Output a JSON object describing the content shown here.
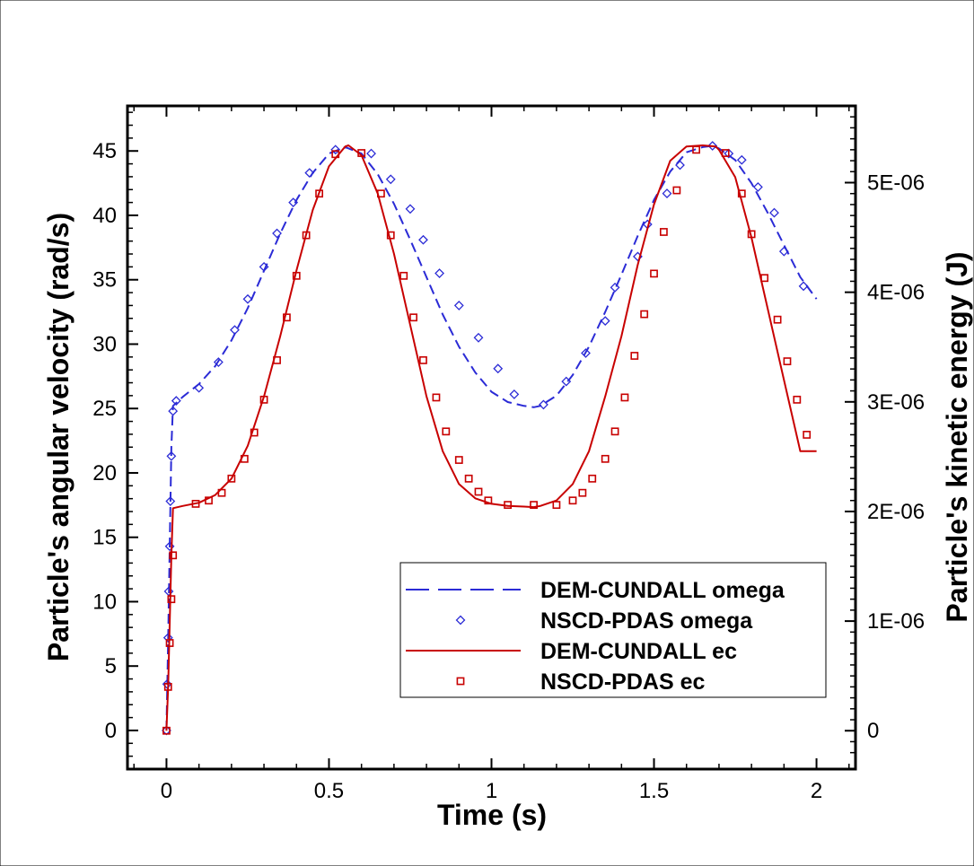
{
  "chart_data": {
    "type": "line",
    "xlabel": "Time (s)",
    "ylabel": "Particle's angular velocity (rad/s)",
    "y2label": "Particle's kinetic energy (J)",
    "xlim": [
      -0.12,
      2.12
    ],
    "ylim": [
      -3,
      48.5
    ],
    "y2lim": [
      -3.5e-07,
      5.7e-06
    ],
    "x_ticks": [
      0,
      0.5,
      1,
      1.5,
      2
    ],
    "x_tick_labels": [
      "0",
      "0.5",
      "1",
      "1.5",
      "2"
    ],
    "y_ticks": [
      0,
      5,
      10,
      15,
      20,
      25,
      30,
      35,
      40,
      45
    ],
    "y_tick_labels": [
      "0",
      "5",
      "10",
      "15",
      "20",
      "25",
      "30",
      "35",
      "40",
      "45"
    ],
    "y2_ticks": [
      0,
      1e-06,
      2e-06,
      3e-06,
      4e-06,
      5e-06
    ],
    "y2_tick_labels": [
      "0",
      "1E-06",
      "2E-06",
      "3E-06",
      "4E-06",
      "5E-06"
    ],
    "grid": false,
    "legend_position": "lower-right",
    "series": [
      {
        "name": "DEM-CUNDALL omega",
        "axis": "left",
        "style": "dashed-line",
        "color": "#2b2bd6",
        "x": [
          0,
          0.005,
          0.01,
          0.015,
          0.02,
          0.05,
          0.1,
          0.15,
          0.2,
          0.25,
          0.3,
          0.35,
          0.4,
          0.45,
          0.5,
          0.55,
          0.6,
          0.65,
          0.7,
          0.75,
          0.8,
          0.85,
          0.9,
          0.95,
          1.0,
          1.05,
          1.1,
          1.13,
          1.15,
          1.2,
          1.25,
          1.3,
          1.35,
          1.4,
          1.45,
          1.5,
          1.55,
          1.6,
          1.65,
          1.68,
          1.7,
          1.75,
          1.8,
          1.85,
          1.9,
          1.95,
          2.0
        ],
        "y": [
          0,
          7,
          14.5,
          22,
          25.2,
          25.9,
          26.9,
          28.3,
          30.3,
          32.8,
          35.7,
          38.6,
          41.2,
          43.3,
          44.8,
          45.3,
          44.8,
          43.2,
          40.9,
          38.1,
          35.2,
          32.3,
          29.8,
          27.8,
          26.3,
          25.5,
          25.2,
          25.1,
          25.2,
          26.0,
          27.6,
          29.8,
          32.5,
          35.4,
          38.4,
          41.2,
          43.4,
          44.9,
          45.3,
          45.4,
          45.2,
          44.3,
          42.5,
          40.2,
          37.7,
          35.2,
          33.5
        ]
      },
      {
        "name": "NSCD-PDAS omega",
        "axis": "left",
        "style": "diamond-markers",
        "color": "#2b2bd6",
        "x": [
          0,
          0.002,
          0.005,
          0.007,
          0.01,
          0.012,
          0.015,
          0.02,
          0.03,
          0.1,
          0.16,
          0.21,
          0.25,
          0.3,
          0.34,
          0.39,
          0.44,
          0.52,
          0.63,
          0.69,
          0.75,
          0.79,
          0.84,
          0.9,
          0.96,
          1.02,
          1.07,
          1.16,
          1.23,
          1.29,
          1.35,
          1.38,
          1.45,
          1.48,
          1.54,
          1.58,
          1.68,
          1.73,
          1.77,
          1.82,
          1.87,
          1.9,
          1.96
        ],
        "y": [
          0,
          3.6,
          7.2,
          10.8,
          14.3,
          17.8,
          21.3,
          24.8,
          25.6,
          26.6,
          28.6,
          31.1,
          33.5,
          36.0,
          38.6,
          41.0,
          43.3,
          45.1,
          44.8,
          42.8,
          40.5,
          38.1,
          35.5,
          33.0,
          30.5,
          28.1,
          26.1,
          25.3,
          27.1,
          29.3,
          31.8,
          34.4,
          36.8,
          39.3,
          41.7,
          43.9,
          45.4,
          44.8,
          44.3,
          42.2,
          40.2,
          37.2,
          34.5
        ]
      },
      {
        "name": "DEM-CUNDALL ec",
        "axis": "right",
        "style": "solid-line",
        "color": "#c80000",
        "x": [
          0,
          0.005,
          0.01,
          0.015,
          0.02,
          0.05,
          0.1,
          0.15,
          0.2,
          0.25,
          0.3,
          0.35,
          0.4,
          0.45,
          0.5,
          0.55,
          0.56,
          0.6,
          0.65,
          0.7,
          0.75,
          0.8,
          0.85,
          0.9,
          0.95,
          1.0,
          1.05,
          1.1,
          1.13,
          1.15,
          1.2,
          1.25,
          1.3,
          1.35,
          1.4,
          1.45,
          1.5,
          1.55,
          1.6,
          1.65,
          1.69,
          1.7,
          1.75,
          1.8,
          1.85,
          1.9,
          1.95,
          2.0
        ],
        "y": [
          0,
          4e-07,
          1e-06,
          1.6e-06,
          2.03e-06,
          2.05e-06,
          2.08e-06,
          2.15e-06,
          2.3e-06,
          2.6e-06,
          3.05e-06,
          3.6e-06,
          4.2e-06,
          4.75e-06,
          5.15e-06,
          5.33e-06,
          5.34e-06,
          5.25e-06,
          4.9e-06,
          4.35e-06,
          3.7e-06,
          3.05e-06,
          2.55e-06,
          2.25e-06,
          2.12e-06,
          2.07e-06,
          2.05e-06,
          2.045e-06,
          2.04e-06,
          2.05e-06,
          2.1e-06,
          2.25e-06,
          2.55e-06,
          3.05e-06,
          3.6e-06,
          4.25e-06,
          4.8e-06,
          5.2e-06,
          5.33e-06,
          5.34e-06,
          5.33e-06,
          5.3e-06,
          5.05e-06,
          4.5e-06,
          3.85e-06,
          3.2e-06,
          2.55e-06,
          2.55e-06
        ]
      },
      {
        "name": "NSCD-PDAS ec",
        "axis": "right",
        "style": "square-markers",
        "color": "#c80000",
        "x": [
          0,
          0.005,
          0.01,
          0.015,
          0.02,
          0.09,
          0.13,
          0.17,
          0.2,
          0.24,
          0.27,
          0.3,
          0.34,
          0.37,
          0.4,
          0.43,
          0.47,
          0.52,
          0.6,
          0.66,
          0.69,
          0.73,
          0.76,
          0.79,
          0.83,
          0.86,
          0.9,
          0.93,
          0.96,
          0.99,
          1.05,
          1.13,
          1.2,
          1.25,
          1.28,
          1.31,
          1.35,
          1.38,
          1.41,
          1.44,
          1.47,
          1.5,
          1.53,
          1.57,
          1.63,
          1.72,
          1.77,
          1.8,
          1.84,
          1.88,
          1.91,
          1.94,
          1.97
        ],
        "y": [
          0,
          4e-07,
          8e-07,
          1.2e-06,
          1.6e-06,
          2.07e-06,
          2.1e-06,
          2.17e-06,
          2.3e-06,
          2.48e-06,
          2.72e-06,
          3.02e-06,
          3.38e-06,
          3.77e-06,
          4.15e-06,
          4.52e-06,
          4.9e-06,
          5.26e-06,
          5.27e-06,
          4.9e-06,
          4.52e-06,
          4.15e-06,
          3.77e-06,
          3.38e-06,
          3.04e-06,
          2.73e-06,
          2.47e-06,
          2.3e-06,
          2.18e-06,
          2.1e-06,
          2.06e-06,
          2.06e-06,
          2.06e-06,
          2.1e-06,
          2.17e-06,
          2.3e-06,
          2.48e-06,
          2.73e-06,
          3.04e-06,
          3.42e-06,
          3.8e-06,
          4.17e-06,
          4.55e-06,
          4.93e-06,
          5.3e-06,
          5.27e-06,
          4.9e-06,
          4.53e-06,
          4.13e-06,
          3.75e-06,
          3.37e-06,
          3.02e-06,
          2.7e-06
        ]
      }
    ]
  }
}
